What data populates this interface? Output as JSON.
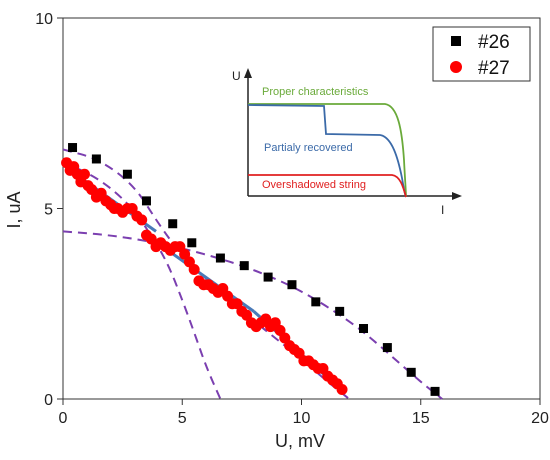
{
  "chart_data": {
    "type": "scatter",
    "xlabel": "U, mV",
    "ylabel": "I, uA",
    "xlim": [
      0,
      20
    ],
    "ylim": [
      0,
      10
    ],
    "x_ticks": [
      0,
      5,
      10,
      15,
      20
    ],
    "y_ticks": [
      0,
      5,
      10
    ],
    "x_tick_labels": [
      "0",
      "5",
      "10",
      "15",
      "20"
    ],
    "y_tick_labels": [
      "0",
      "5",
      "10"
    ],
    "legend_position": "top-right",
    "series": [
      {
        "name": "#26",
        "marker": "square",
        "color": "#000000",
        "x": [
          0.4,
          1.4,
          2.7,
          3.5,
          4.6,
          5.4,
          6.6,
          7.6,
          8.6,
          9.6,
          10.6,
          11.6,
          12.6,
          13.6,
          14.6,
          15.6
        ],
        "y": [
          6.6,
          6.3,
          5.9,
          5.2,
          4.6,
          4.1,
          3.7,
          3.5,
          3.2,
          3.0,
          2.55,
          2.3,
          1.85,
          1.35,
          0.7,
          0.2
        ]
      },
      {
        "name": "#27",
        "marker": "circle",
        "color": "#ff0000",
        "x": [
          0.15,
          0.3,
          0.45,
          0.6,
          0.75,
          0.9,
          1.05,
          1.2,
          1.4,
          1.6,
          1.8,
          2.0,
          2.15,
          2.3,
          2.5,
          2.7,
          2.9,
          3.1,
          3.3,
          3.5,
          3.7,
          3.9,
          4.1,
          4.3,
          4.5,
          4.7,
          4.9,
          5.1,
          5.3,
          5.5,
          5.7,
          5.9,
          6.1,
          6.3,
          6.5,
          6.7,
          6.9,
          7.1,
          7.3,
          7.5,
          7.7,
          7.9,
          8.1,
          8.3,
          8.5,
          8.7,
          8.9,
          9.1,
          9.3,
          9.5,
          9.7,
          9.9,
          10.1,
          10.3,
          10.5,
          10.7,
          10.9,
          11.1,
          11.3,
          11.5,
          11.7
        ],
        "y": [
          6.2,
          6.0,
          6.1,
          5.9,
          5.7,
          5.9,
          5.6,
          5.5,
          5.3,
          5.4,
          5.2,
          5.1,
          5.0,
          5.0,
          4.9,
          5.0,
          5.0,
          4.8,
          4.7,
          4.3,
          4.2,
          4.0,
          4.1,
          4.0,
          3.9,
          4.0,
          4.0,
          3.8,
          3.6,
          3.4,
          3.1,
          3.0,
          3.0,
          2.9,
          2.8,
          2.9,
          2.7,
          2.5,
          2.5,
          2.3,
          2.2,
          2.0,
          1.9,
          2.0,
          2.1,
          1.9,
          2.0,
          1.8,
          1.6,
          1.4,
          1.3,
          1.2,
          1.0,
          1.0,
          0.9,
          0.8,
          0.8,
          0.6,
          0.5,
          0.4,
          0.25
        ]
      }
    ],
    "fit_lines": [
      {
        "style": "solid",
        "color": "#4a7ab8",
        "x": [
          0.3,
          3.9
        ],
        "y": [
          6.0,
          4.4
        ]
      },
      {
        "style": "solid",
        "color": "#4a7ab8",
        "x": [
          4.4,
          8.0
        ],
        "y": [
          3.9,
          2.3
        ]
      },
      {
        "style": "solid",
        "color": "#4a7ab8",
        "x": [
          8.0,
          11.2
        ],
        "y": [
          2.3,
          0.5
        ]
      }
    ],
    "dashed_curves": [
      {
        "color": "#7b3fb0",
        "x": [
          0.0,
          1.0,
          2.0,
          3.0,
          4.0,
          4.5,
          5.0,
          5.5,
          6.0,
          6.6
        ],
        "y": [
          6.2,
          5.95,
          5.55,
          4.95,
          4.0,
          3.4,
          2.6,
          1.75,
          0.85,
          0.0
        ]
      },
      {
        "color": "#7b3fb0",
        "x": [
          0.0,
          2.0,
          4.0,
          6.0,
          8.0,
          10.0,
          12.0,
          13.0,
          14.0,
          15.0,
          15.5,
          15.9
        ],
        "y": [
          4.4,
          4.3,
          4.1,
          3.8,
          3.4,
          2.85,
          2.05,
          1.55,
          1.0,
          0.45,
          0.2,
          0.0
        ]
      },
      {
        "color": "#7b3fb0",
        "x": [
          0.0,
          1.5,
          3.0,
          4.0,
          5.0,
          6.0,
          7.0,
          8.0,
          9.0,
          10.0,
          11.0,
          12.0
        ],
        "y": [
          6.55,
          6.3,
          5.6,
          4.6,
          3.75,
          3.15,
          2.6,
          2.05,
          1.55,
          1.05,
          0.5,
          0.0
        ]
      }
    ],
    "inset": {
      "y_axis_label": "U",
      "x_axis_label": "I",
      "curves": [
        {
          "name": "Proper characteristics",
          "color": "#6aaa3a"
        },
        {
          "name": "Partialy recovered",
          "color": "#3b6aa8"
        },
        {
          "name": "Overshadowed string",
          "color": "#e02020"
        }
      ]
    }
  }
}
